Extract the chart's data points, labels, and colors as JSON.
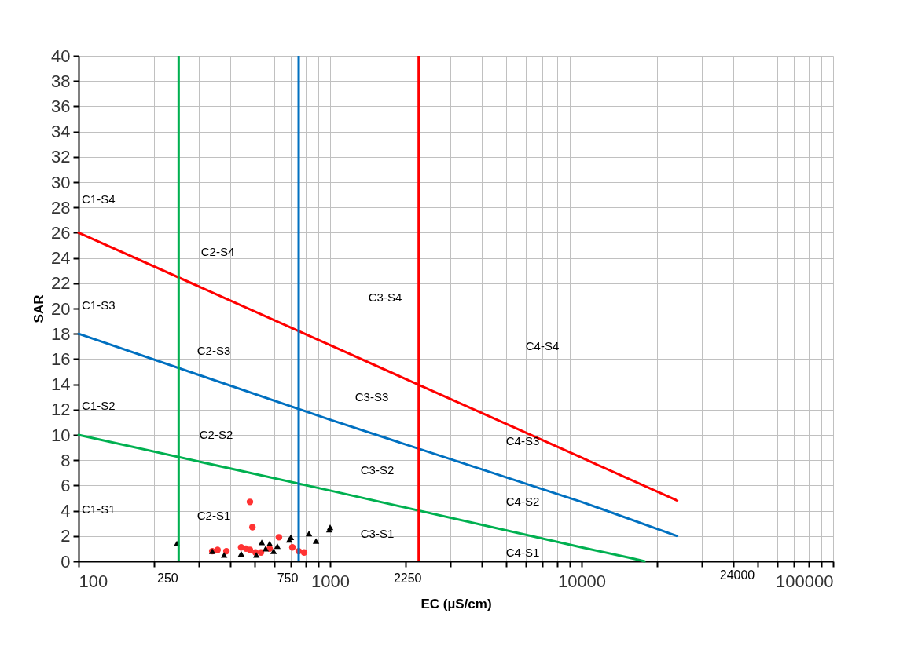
{
  "chart_data": {
    "type": "scatter",
    "xlabel": "EC (µS/cm)",
    "ylabel": "SAR",
    "log": "x",
    "grid": true,
    "xlim": [
      100,
      100000
    ],
    "ylim": [
      0,
      40
    ],
    "xticks": [
      100,
      {
        "value": 200,
        "label": null
      },
      {
        "value": 300,
        "label": null
      },
      {
        "value": 400,
        "label": null
      },
      {
        "value": 500,
        "label": null
      },
      {
        "value": 600,
        "label": null
      },
      {
        "value": 700,
        "label": null
      },
      {
        "value": 800,
        "label": null
      },
      {
        "value": 900,
        "label": null
      },
      1000,
      {
        "value": 2000,
        "label": null
      },
      {
        "value": 3000,
        "label": null
      },
      {
        "value": 4000,
        "label": null
      },
      {
        "value": 5000,
        "label": null
      },
      {
        "value": 6000,
        "label": null
      },
      {
        "value": 7000,
        "label": null
      },
      {
        "value": 8000,
        "label": null
      },
      {
        "value": 9000,
        "label": null
      },
      10000,
      {
        "value": 20000,
        "label": null
      },
      {
        "value": 30000,
        "label": null
      },
      {
        "value": 40000,
        "label": null
      },
      {
        "value": 50000,
        "label": null
      },
      {
        "value": 60000,
        "label": null
      },
      {
        "value": 70000,
        "label": null
      },
      {
        "value": 80000,
        "label": null
      },
      {
        "value": 90000,
        "label": null
      },
      100000
    ],
    "yticks": [
      0,
      2,
      4,
      6,
      8,
      10,
      12,
      14,
      16,
      18,
      20,
      22,
      24,
      26,
      28,
      30,
      32,
      34,
      36,
      38,
      40
    ],
    "series": [
      {
        "type": "line",
        "color": "#00b050",
        "marker": "none",
        "x": [
          100,
          1000,
          10000,
          15400,
          17800
        ],
        "values": [
          10,
          5.6,
          1.1,
          0.3,
          0
        ]
      },
      {
        "type": "line",
        "color": "#0070c0",
        "marker": "none",
        "x": [
          100,
          1000,
          10000,
          24000
        ],
        "values": [
          18,
          11.2,
          4.7,
          2.0
        ]
      },
      {
        "type": "line",
        "color": "#ff0000",
        "marker": "none",
        "x": [
          100,
          1000,
          10000,
          24000
        ],
        "values": [
          26,
          17.1,
          8.2,
          4.8
        ]
      },
      {
        "color": "#ff3333",
        "marker": "circle",
        "x": [
          340,
          357,
          387,
          443,
          463,
          480,
          491,
          480,
          505,
          531,
          575,
          626,
          708,
          750,
          788
        ],
        "values": [
          0.8,
          0.9,
          0.8,
          1.1,
          1.0,
          4.7,
          2.7,
          0.9,
          0.7,
          0.7,
          1.0,
          1.9,
          1.1,
          0.8,
          0.7
        ]
      },
      {
        "color": "#000000",
        "marker": "triangle",
        "x": [
          246,
          340,
          379,
          443,
          509,
          535,
          554,
          575,
          596,
          617,
          688,
          698,
          824,
          879,
          993,
          1000
        ],
        "values": [
          1.4,
          0.8,
          0.5,
          0.6,
          0.5,
          1.5,
          1.0,
          1.4,
          0.8,
          1.2,
          1.7,
          1.9,
          2.2,
          1.6,
          2.5,
          2.7
        ]
      }
    ],
    "ref_lines": [
      {
        "axis": "x",
        "value": 250,
        "label": "250",
        "color": "#00b050"
      },
      {
        "axis": "x",
        "value": 750,
        "label": "750",
        "color": "#0070c0"
      },
      {
        "axis": "x",
        "value": 2250,
        "label": "2250",
        "color": "#ff0000"
      }
    ],
    "annotations": [
      "24000",
      "C1-S4",
      "C2-S4",
      "C1-S3",
      "C3-S4",
      "C2-S3",
      "C4-S4",
      "C1-S2",
      "C3-S3",
      "C2-S2",
      "C4-S3",
      "C3-S2",
      "C1-S1",
      "C4-S2",
      "C2-S1",
      "C3-S1",
      "C4-S1"
    ]
  }
}
